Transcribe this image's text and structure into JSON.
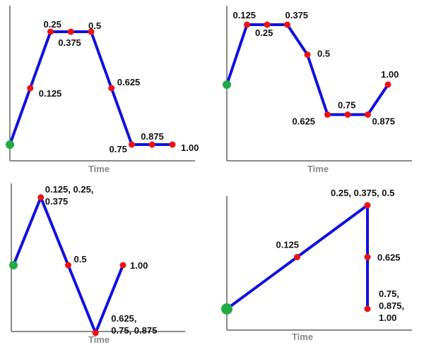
{
  "colors": {
    "line": "#1010e0",
    "point": "#ee1111",
    "start_point": "#22aa44",
    "axis": "#8a8a8a",
    "axis_title": "#888888",
    "label": "#111111"
  },
  "chart_data": [
    {
      "type": "line",
      "xlabel": "Time",
      "series": [
        {
          "points": [
            {
              "x": 0,
              "y": 0,
              "label": "",
              "start": true
            },
            {
              "x": 0.125,
              "y": 0.5,
              "label": "0.125"
            },
            {
              "x": 0.25,
              "y": 1,
              "label": "0.25"
            },
            {
              "x": 0.375,
              "y": 1,
              "label": "0.375"
            },
            {
              "x": 0.5,
              "y": 1,
              "label": "0.5"
            },
            {
              "x": 0.625,
              "y": 0.5,
              "label": "0.625"
            },
            {
              "x": 0.75,
              "y": 0,
              "label": "0.75"
            },
            {
              "x": 0.875,
              "y": 0,
              "label": "0.875"
            },
            {
              "x": 1.0,
              "y": 0,
              "label": "1.00"
            }
          ]
        }
      ]
    },
    {
      "type": "line",
      "xlabel": "Time",
      "series": [
        {
          "points": [
            {
              "x": 0,
              "y": 0,
              "label": "",
              "start": true
            },
            {
              "x": 0.125,
              "y": 1,
              "label": "0.125"
            },
            {
              "x": 0.25,
              "y": 1,
              "label": "0.25"
            },
            {
              "x": 0.375,
              "y": 1,
              "label": "0.375"
            },
            {
              "x": 0.5,
              "y": 0.5,
              "label": "0.5"
            },
            {
              "x": 0.625,
              "y": -0.5,
              "label": "0.625"
            },
            {
              "x": 0.75,
              "y": -0.5,
              "label": "0.75"
            },
            {
              "x": 0.875,
              "y": -0.5,
              "label": "0.875"
            },
            {
              "x": 1.0,
              "y": 0,
              "label": "1.00"
            }
          ]
        }
      ]
    },
    {
      "type": "line",
      "xlabel": "Time",
      "series": [
        {
          "points": [
            {
              "x": 0,
              "y": 0,
              "label": "",
              "start": true
            },
            {
              "x": 1,
              "y": 1,
              "label": "0.125, 0.25,\n0.375"
            },
            {
              "x": 2,
              "y": 0,
              "label": "0.5"
            },
            {
              "x": 3,
              "y": -1,
              "label": "0.625,\n0.75, 0.875"
            },
            {
              "x": 4,
              "y": 0,
              "label": "1.00"
            }
          ]
        }
      ]
    },
    {
      "type": "line",
      "xlabel": "Time",
      "series": [
        {
          "points": [
            {
              "x": 0,
              "y": 0,
              "label": "",
              "start": true
            },
            {
              "x": 0.5,
              "y": 0.5,
              "label": "0.125"
            },
            {
              "x": 1,
              "y": 1,
              "label": "0.25, 0.375, 0.5"
            },
            {
              "x": 1,
              "y": 0.5,
              "label": "0.625"
            },
            {
              "x": 1,
              "y": 0,
              "label": "0.75,\n0.875,\n1.00"
            }
          ]
        }
      ]
    }
  ]
}
